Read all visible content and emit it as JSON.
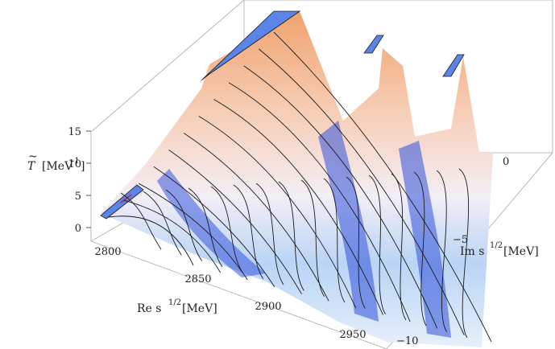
{
  "chart_data": {
    "type": "surface3d",
    "title": "",
    "zlabel": {
      "main": "T",
      "accent": "~",
      "unit": "[MeV",
      "unit_exp": "-1",
      "unit_close": "]"
    },
    "xlabel": {
      "prefix": "Re s",
      "exp": "1/2",
      "unit": "[MeV]"
    },
    "ylabel": {
      "prefix": "Im s",
      "exp": "1/2",
      "unit": "[MeV]"
    },
    "x_ticks": [
      "2800",
      "2850",
      "2900",
      "2950"
    ],
    "y_ticks": [
      "0",
      "−5",
      "−10"
    ],
    "z_ticks": [
      "0",
      "5",
      "10",
      "15"
    ],
    "xlim": [
      2790,
      2965
    ],
    "ylim": [
      -10,
      0
    ],
    "zlim": [
      0,
      15
    ],
    "poles": [
      {
        "re": 2818,
        "im": 0
      },
      {
        "re": 2867,
        "im": -1
      },
      {
        "re": 2926,
        "im": -1
      }
    ],
    "colors": {
      "low": "#3b63e0",
      "mid": "#f3eef6",
      "high": "#f0a36d",
      "clipped_top": "#5b84e8"
    }
  }
}
